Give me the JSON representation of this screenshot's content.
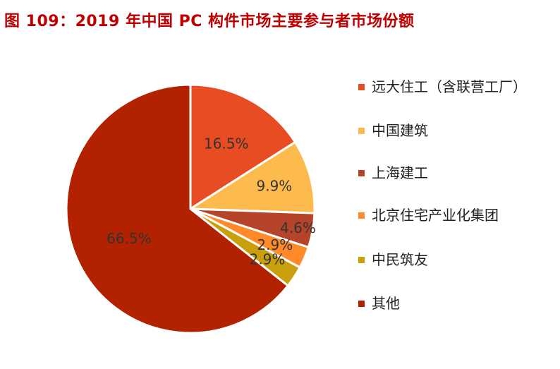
{
  "title": "图 109：2019 年中国 PC 构件市场主要参与者市场份额",
  "chart_data": {
    "type": "pie",
    "title": "图 109：2019 年中国 PC 构件市场主要参与者市场份额",
    "legend_position": "right",
    "slices": [
      {
        "label": "远大住工（含联营工厂）",
        "value": 16.5,
        "display": "16.5%",
        "color": "#e84c22"
      },
      {
        "label": "中国建筑",
        "value": 9.9,
        "display": "9.9%",
        "color": "#fdbb4d"
      },
      {
        "label": "上海建工",
        "value": 4.6,
        "display": "4.6%",
        "color": "#b5442a"
      },
      {
        "label": "北京住宅产业化集团",
        "value": 2.9,
        "display": "2.9%",
        "color": "#ff8a2a"
      },
      {
        "label": "中民筑友",
        "value": 2.9,
        "display": "2.9%",
        "color": "#c9a00b"
      },
      {
        "label": "其他",
        "value": 66.5,
        "display": "66.5%",
        "color": "#b22200"
      }
    ]
  }
}
